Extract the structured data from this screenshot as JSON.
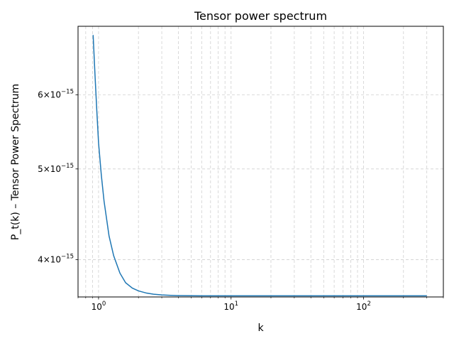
{
  "chart_data": {
    "type": "line",
    "title": "Tensor power spectrum",
    "xlabel": "k",
    "ylabel": "P_t(k) – Tensor Power Spectrum",
    "x_scale": "log",
    "y_scale": "log",
    "xlim": [
      0.7,
      400
    ],
    "ylim": [
      3.65e-15,
      7.1e-15
    ],
    "grid": true,
    "grid_style": "dashed",
    "line_color": "#1f77b4",
    "x_ticks": [
      {
        "value": 1,
        "base": "10",
        "exp": "0"
      },
      {
        "value": 10,
        "base": "10",
        "exp": "1"
      },
      {
        "value": 100,
        "base": "10",
        "exp": "2"
      }
    ],
    "y_ticks": [
      {
        "value": 4e-15,
        "mantissa": "4",
        "base": "10",
        "exp": "−15"
      },
      {
        "value": 5e-15,
        "mantissa": "5",
        "base": "10",
        "exp": "−15"
      },
      {
        "value": 6e-15,
        "mantissa": "6",
        "base": "10",
        "exp": "−15"
      }
    ],
    "series": [
      {
        "x": [
          0.91,
          0.94,
          0.97,
          1.0,
          1.05,
          1.1,
          1.2,
          1.3,
          1.45,
          1.6,
          1.8,
          2.0,
          2.3,
          2.6,
          3.0,
          3.5,
          4.0,
          5.0,
          6.0,
          8.0,
          10,
          15,
          20,
          30,
          50,
          100,
          200,
          300
        ],
        "y": [
          6.95e-15,
          6.3e-15,
          5.77e-15,
          5.33e-15,
          4.92e-15,
          4.62e-15,
          4.24e-15,
          4.04e-15,
          3.87e-15,
          3.78e-15,
          3.73e-15,
          3.705e-15,
          3.685e-15,
          3.675e-15,
          3.668e-15,
          3.664e-15,
          3.662e-15,
          3.661e-15,
          3.66e-15,
          3.66e-15,
          3.66e-15,
          3.66e-15,
          3.66e-15,
          3.66e-15,
          3.66e-15,
          3.66e-15,
          3.66e-15,
          3.66e-15
        ]
      }
    ]
  }
}
